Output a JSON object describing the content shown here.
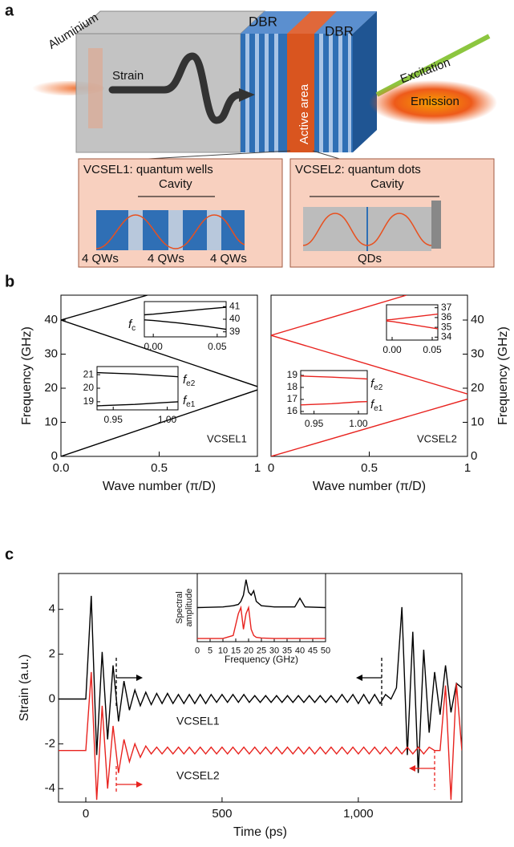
{
  "figure": {
    "panel_labels": [
      "a",
      "b",
      "c"
    ],
    "diagram": {
      "aluminium": "Aluminium",
      "strain": "Strain",
      "dbr_left": "DBR",
      "dbr_right": "DBR",
      "active_area": "Active area",
      "excitation": "Excitation",
      "emission": "Emission",
      "vcsel1": {
        "title": "VCSEL1: quantum wells",
        "cavity": "Cavity",
        "qw_labels": [
          "4 QWs",
          "4 QWs",
          "4 QWs"
        ]
      },
      "vcsel2": {
        "title": "VCSEL2: quantum dots",
        "cavity": "Cavity",
        "qd_label": "QDs"
      }
    }
  },
  "chart_data": [
    {
      "type": "line",
      "xlabel": "Wave number (π/D)",
      "ylabel": "Frequency (GHz)",
      "xlim": [
        0,
        1
      ],
      "xticks": [
        {
          "value": 0,
          "label": "0.0"
        },
        0.5,
        1
      ],
      "ylim": [
        0,
        47.3
      ],
      "yticks": [
        0,
        10,
        20,
        30,
        40
      ],
      "annotations": [
        "VCSEL1"
      ],
      "series": [
        {
          "color": "#000000",
          "x": [
            0,
            1
          ],
          "values": [
            0,
            19.5
          ]
        },
        {
          "color": "#000000",
          "x": [
            0,
            1
          ],
          "values": [
            40,
            20.5
          ]
        },
        {
          "color": "#000000",
          "x": [
            0,
            0.44
          ],
          "values": [
            40,
            47.3
          ]
        }
      ]
    },
    {
      "type": "line",
      "xlim": [
        -0.007,
        0.057
      ],
      "xticks": [
        {
          "value": 0,
          "label": "0.00"
        },
        0.05
      ],
      "ylim": [
        38.6,
        41.4
      ],
      "yticks": [
        39,
        40,
        41
      ],
      "annotations": [
        {
          "symbol": "f",
          "subscript": "c"
        }
      ],
      "series": [
        {
          "color": "#000000",
          "x": [
            -0.007,
            0,
            0.02,
            0.04,
            0.057
          ],
          "values": [
            40.35,
            40.4,
            40.6,
            40.8,
            40.95
          ]
        },
        {
          "color": "#000000",
          "x": [
            -0.007,
            0,
            0.02,
            0.04,
            0.057
          ],
          "values": [
            39.95,
            39.9,
            39.7,
            39.45,
            39.2
          ]
        }
      ]
    },
    {
      "type": "line",
      "xlim": [
        0.935,
        1.01
      ],
      "xticks": [
        0.95,
        {
          "value": 1,
          "label": "1.00"
        }
      ],
      "ylim": [
        18.4,
        21.6
      ],
      "yticks": [
        19,
        20,
        21
      ],
      "annotations": [
        {
          "symbol": "f",
          "subscript": "e2"
        },
        {
          "symbol": "f",
          "subscript": "e1"
        }
      ],
      "series": [
        {
          "color": "#000000",
          "x": [
            0.935,
            0.97,
            1.0,
            1.01
          ],
          "values": [
            21.15,
            21.05,
            20.9,
            20.85
          ]
        },
        {
          "color": "#000000",
          "x": [
            0.935,
            0.97,
            1.0,
            1.01
          ],
          "values": [
            18.7,
            18.8,
            18.95,
            19.0
          ]
        }
      ]
    },
    {
      "type": "line",
      "xlabel": "Wave number (π/D)",
      "ylabel": "Frequency (GHz)",
      "xlim": [
        0,
        1
      ],
      "xticks": [
        0,
        0.5,
        1
      ],
      "ylim": [
        0,
        47.3
      ],
      "yticks": [
        0,
        10,
        20,
        30,
        40
      ],
      "annotations": [
        "VCSEL2"
      ],
      "series": [
        {
          "color": "#e8231f",
          "x": [
            0,
            1
          ],
          "values": [
            0,
            16.8
          ]
        },
        {
          "color": "#e8231f",
          "x": [
            0,
            1
          ],
          "values": [
            35.5,
            18.3
          ]
        },
        {
          "color": "#e8231f",
          "x": [
            0,
            0.69
          ],
          "values": [
            35.5,
            47.3
          ]
        }
      ]
    },
    {
      "type": "line",
      "xlim": [
        -0.007,
        0.057
      ],
      "xticks": [
        {
          "value": 0,
          "label": "0.00"
        },
        0.05
      ],
      "ylim": [
        33.7,
        37.3
      ],
      "yticks": [
        34,
        35,
        36,
        37
      ],
      "series": [
        {
          "color": "#e8231f",
          "x": [
            -0.007,
            0,
            0.057
          ],
          "values": [
            35.75,
            35.8,
            36.35
          ]
        },
        {
          "color": "#e8231f",
          "x": [
            -0.007,
            0,
            0.057
          ],
          "values": [
            35.65,
            35.6,
            34.85
          ]
        }
      ]
    },
    {
      "type": "line",
      "xlim": [
        0.935,
        1.01
      ],
      "xticks": [
        0.95,
        {
          "value": 1,
          "label": "1.00"
        }
      ],
      "ylim": [
        15.8,
        19.4
      ],
      "yticks": [
        16,
        17,
        18,
        19
      ],
      "annotations": [
        {
          "symbol": "f",
          "subscript": "e2"
        },
        {
          "symbol": "f",
          "subscript": "e1"
        }
      ],
      "series": [
        {
          "color": "#e8231f",
          "x": [
            0.935,
            0.97,
            1.0,
            1.01
          ],
          "values": [
            18.95,
            18.85,
            18.75,
            18.7
          ]
        },
        {
          "color": "#e8231f",
          "x": [
            0.935,
            0.97,
            1.0,
            1.01
          ],
          "values": [
            16.55,
            16.65,
            16.8,
            16.82
          ]
        }
      ]
    },
    {
      "type": "line",
      "xlabel": "Time (ps)",
      "ylabel": "Strain (a.u.)",
      "xlim": [
        -100,
        1380
      ],
      "xticks": [
        0,
        500,
        {
          "value": 1000,
          "label": "1,000"
        }
      ],
      "ylim": [
        -4.6,
        5.6
      ],
      "yticks": [
        -4,
        -2,
        0,
        2,
        4
      ],
      "annotations": [
        "VCSEL1",
        "VCSEL2"
      ],
      "x": [
        -100,
        -80,
        -60,
        -40,
        -20,
        0,
        20,
        40,
        60,
        80,
        100,
        120,
        140,
        160,
        180,
        200,
        220,
        240,
        260,
        280,
        300,
        320,
        340,
        360,
        380,
        400,
        420,
        440,
        460,
        480,
        500,
        520,
        540,
        560,
        580,
        600,
        620,
        640,
        660,
        680,
        700,
        720,
        740,
        760,
        780,
        800,
        820,
        840,
        860,
        880,
        900,
        920,
        940,
        960,
        980,
        1000,
        1020,
        1040,
        1060,
        1080,
        1100,
        1120,
        1140,
        1160,
        1180,
        1200,
        1220,
        1240,
        1260,
        1280,
        1300,
        1320,
        1340,
        1360,
        1380
      ],
      "series": [
        {
          "color": "#000000",
          "values": [
            0,
            0,
            0,
            0,
            0,
            0,
            4.6,
            -2.5,
            2.1,
            -1.8,
            1.5,
            -1,
            0.8,
            -0.5,
            0.4,
            -0.3,
            0.3,
            -0.25,
            0.25,
            -0.2,
            0.25,
            -0.2,
            0.2,
            -0.2,
            0.2,
            -0.2,
            0.2,
            -0.2,
            0.2,
            -0.15,
            0.2,
            -0.15,
            0.2,
            -0.15,
            0.2,
            -0.15,
            0.15,
            -0.15,
            0.15,
            -0.15,
            0.15,
            -0.15,
            0.15,
            -0.15,
            0.15,
            -0.15,
            0.15,
            -0.15,
            0.15,
            -0.15,
            0.15,
            -0.15,
            0.2,
            -0.15,
            0.2,
            -0.2,
            0.2,
            -0.2,
            0.2,
            -0.2,
            0.2,
            0,
            0.5,
            4.1,
            -2.5,
            3,
            -3.3,
            2.2,
            -1.5,
            1.2,
            -0.7,
            1.5,
            -0.6,
            0.7,
            0.5
          ]
        },
        {
          "color": "#e8231f",
          "values": [
            -2.3,
            -2.3,
            -2.3,
            -2.3,
            -2.3,
            -2.3,
            1.2,
            -4.5,
            -0.3,
            -4,
            -1.2,
            -3.3,
            -1.8,
            -2.8,
            -2.0,
            -2.6,
            -2.1,
            -2.45,
            -2.15,
            -2.45,
            -2.15,
            -2.45,
            -2.15,
            -2.45,
            -2.15,
            -2.45,
            -2.15,
            -2.45,
            -2.15,
            -2.45,
            -2.15,
            -2.45,
            -2.15,
            -2.45,
            -2.15,
            -2.45,
            -2.15,
            -2.45,
            -2.15,
            -2.45,
            -2.15,
            -2.45,
            -2.15,
            -2.45,
            -2.15,
            -2.45,
            -2.15,
            -2.45,
            -2.15,
            -2.45,
            -2.15,
            -2.45,
            -2.15,
            -2.45,
            -2.15,
            -2.45,
            -2.15,
            -2.45,
            -2.15,
            -2.45,
            -2.15,
            -2.45,
            -2.15,
            -2.45,
            -2.15,
            -2.45,
            -2.15,
            -2.45,
            -2.15,
            -2.3,
            -2.3,
            0.6,
            -4.5,
            0.7,
            -2.3
          ]
        }
      ]
    },
    {
      "type": "line",
      "xlabel": "Frequency (GHz)",
      "ylabel_lines": [
        "Spectral",
        "amplitude"
      ],
      "xlim": [
        0,
        50
      ],
      "xticks": [
        0,
        5,
        10,
        15,
        20,
        25,
        30,
        35,
        40,
        45,
        50
      ],
      "ylim": [
        0,
        1.1
      ],
      "x": [
        0,
        10,
        14,
        16,
        17,
        18,
        19,
        20,
        21,
        22,
        23,
        25,
        30,
        38,
        40,
        42,
        50
      ],
      "series": [
        {
          "color": "#000000",
          "values": [
            0.55,
            0.56,
            0.58,
            0.6,
            0.65,
            0.75,
            1.0,
            0.8,
            0.75,
            0.82,
            0.65,
            0.58,
            0.56,
            0.56,
            0.7,
            0.56,
            0.55
          ]
        },
        {
          "color": "#e8231f",
          "values": [
            0.05,
            0.05,
            0.1,
            0.45,
            0.55,
            0.2,
            0.45,
            0.55,
            0.2,
            0.1,
            0.07,
            0.06,
            0.05,
            0.05,
            0.05,
            0.05,
            0.05
          ]
        }
      ]
    }
  ]
}
